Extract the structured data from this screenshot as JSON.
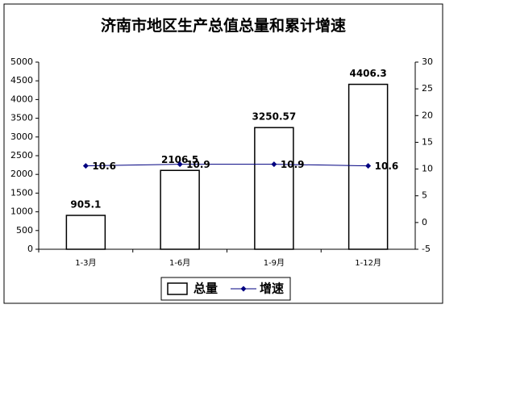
{
  "chart_data": {
    "type": "combo",
    "title": "济南市地区生产总值总量和累计增速",
    "categories": [
      "1-3月",
      "1-6月",
      "1-9月",
      "1-12月"
    ],
    "series": [
      {
        "name": "总量",
        "type": "bar",
        "color": "#ffffff",
        "values": [
          905.1,
          2106.5,
          3250.57,
          4406.3
        ]
      },
      {
        "name": "增速",
        "type": "line",
        "axis": "y2",
        "color": "#000080",
        "values": [
          10.6,
          10.9,
          10.9,
          10.6
        ]
      }
    ],
    "ylim": [
      0,
      5000
    ],
    "yticks": [
      0,
      500,
      1000,
      1500,
      2000,
      2500,
      3000,
      3500,
      4000,
      4500,
      5000
    ],
    "y2lim": [
      -5,
      30
    ],
    "y2ticks": [
      -5,
      0,
      5,
      10,
      15,
      20,
      25,
      30
    ],
    "legend": "bottom"
  }
}
